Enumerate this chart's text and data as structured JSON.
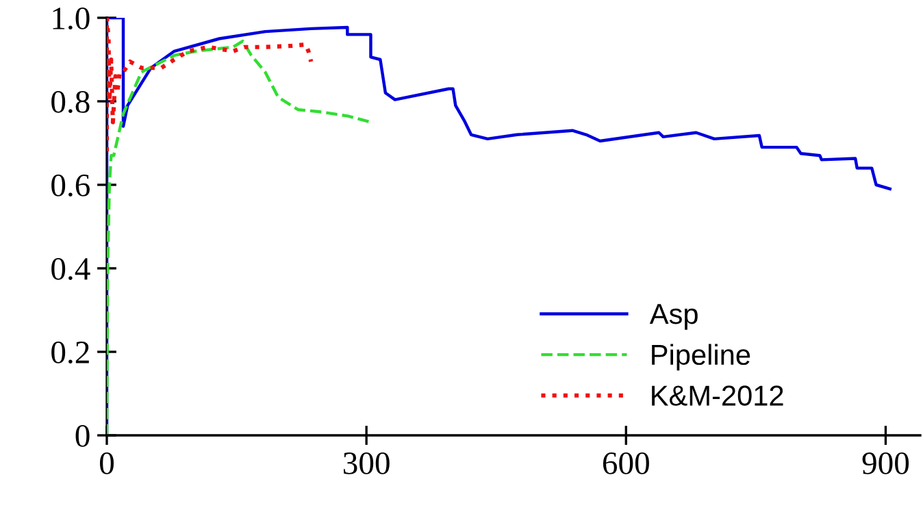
{
  "chart_data": {
    "type": "line",
    "xlim": [
      0,
      940
    ],
    "ylim": [
      0,
      1
    ],
    "xticks": [
      0,
      300,
      600,
      900
    ],
    "yticks": [
      0,
      {
        "value": 0.2,
        "label": "0.2"
      },
      {
        "value": 0.4,
        "label": "0.4"
      },
      {
        "value": 0.6,
        "label": "0.6"
      },
      {
        "value": 0.8,
        "label": "0.8"
      },
      {
        "value": 1,
        "label": "1.0"
      }
    ],
    "grid": false,
    "legend": "bottom right",
    "series": [
      {
        "name": "Asp",
        "color": "#0000dd",
        "line_style": "solid",
        "x": [
          0,
          0,
          19,
          19,
          24,
          51,
          78,
          130,
          183,
          236,
          278,
          278,
          305,
          305,
          316,
          322,
          333,
          395,
          400,
          403,
          413,
          421,
          440,
          474,
          538,
          554,
          570,
          638,
          643,
          681,
          702,
          754,
          757,
          797,
          802,
          824,
          826,
          865,
          867,
          884,
          889,
          905
        ],
        "values": [
          0,
          1,
          1,
          0.74,
          0.79,
          0.88,
          0.92,
          0.95,
          0.967,
          0.974,
          0.977,
          0.96,
          0.96,
          0.906,
          0.9,
          0.82,
          0.804,
          0.83,
          0.83,
          0.79,
          0.754,
          0.72,
          0.71,
          0.72,
          0.73,
          0.72,
          0.705,
          0.725,
          0.715,
          0.725,
          0.71,
          0.718,
          0.69,
          0.69,
          0.675,
          0.67,
          0.66,
          0.663,
          0.64,
          0.64,
          0.6,
          0.59
        ]
      },
      {
        "name": "Pipeline",
        "color": "#33dd33",
        "line_style": "dashed",
        "x": [
          0,
          1,
          3,
          5,
          8,
          19,
          40,
          78,
          103,
          146,
          157,
          167,
          183,
          198,
          221,
          246,
          278,
          305
        ],
        "values": [
          0,
          0.4,
          0.6,
          0.67,
          0.67,
          0.77,
          0.87,
          0.91,
          0.92,
          0.93,
          0.944,
          0.91,
          0.87,
          0.81,
          0.78,
          0.775,
          0.765,
          0.75
        ]
      },
      {
        "name": "K&M-2012",
        "color": "#ee1111",
        "line_style": "dotted",
        "x": [
          0,
          0,
          2,
          3,
          5,
          7,
          10,
          12,
          15,
          19,
          27,
          40,
          63,
          78,
          94,
          117,
          146,
          159,
          183,
          214,
          230,
          233,
          236
        ],
        "values": [
          0.68,
          1,
          0.95,
          0.8,
          0.9,
          0.75,
          0.86,
          0.82,
          0.87,
          0.87,
          0.895,
          0.88,
          0.88,
          0.9,
          0.92,
          0.93,
          0.92,
          0.93,
          0.93,
          0.933,
          0.936,
          0.92,
          0.895
        ]
      }
    ]
  }
}
